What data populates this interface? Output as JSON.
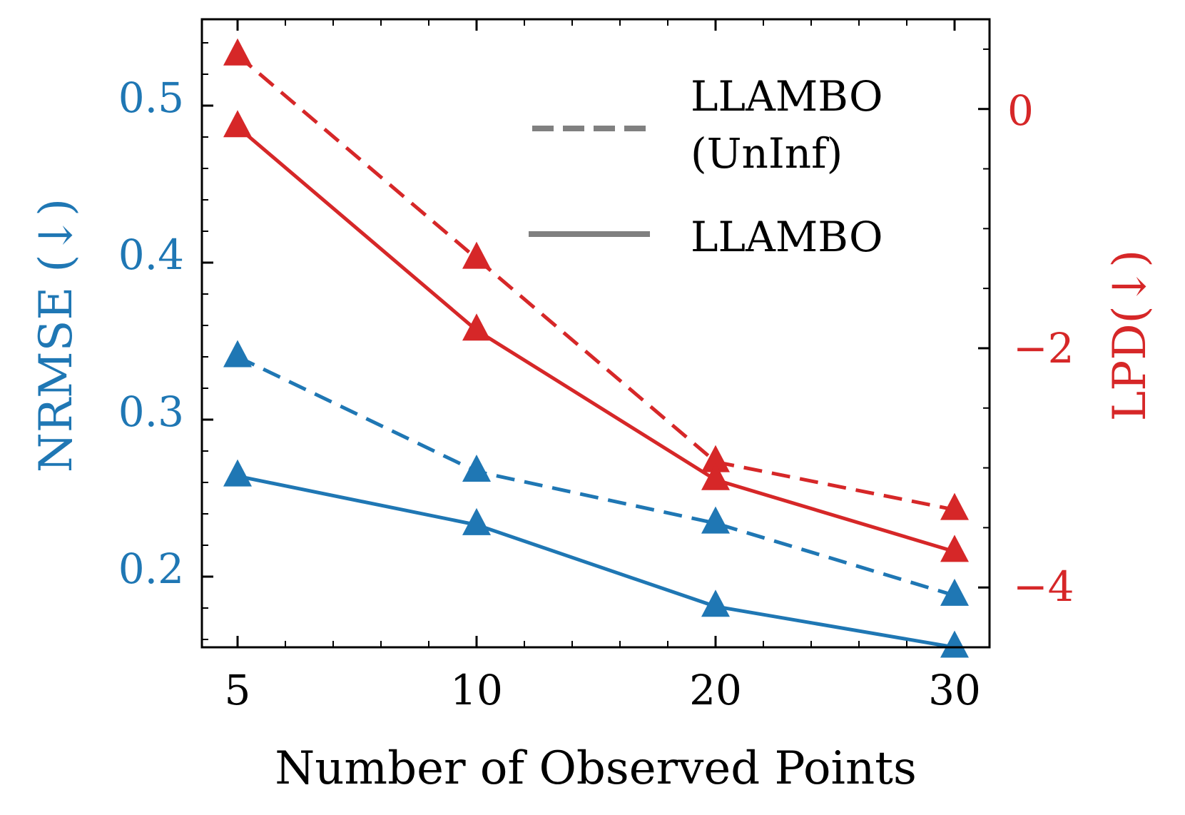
{
  "chart_data": {
    "type": "line",
    "title": "",
    "xlabel": "Number of Observed Points",
    "x": [
      5,
      10,
      20,
      30
    ],
    "x_tick_labels": [
      "5",
      "10",
      "20",
      "30"
    ],
    "left_axis": {
      "label": "NRMSE (↓)",
      "ylim": [
        0.155,
        0.555
      ],
      "ticks": [
        0.2,
        0.3,
        0.4,
        0.5
      ],
      "tick_labels": [
        "0.2",
        "0.3",
        "0.4",
        "0.5"
      ],
      "color": "#1f77b4"
    },
    "right_axis": {
      "label": "LPD(↓)",
      "ylim": [
        -4.5,
        0.75
      ],
      "ticks": [
        -4,
        -2,
        0
      ],
      "tick_labels": [
        "−4",
        "−2",
        "0"
      ],
      "color": "#d62728"
    },
    "series": [
      {
        "name": "LLAMBO (UnInf) NRMSE",
        "axis": "left",
        "style": "dashed",
        "marker": "triangle",
        "color": "#1f77b4",
        "values": [
          0.34,
          0.267,
          0.234,
          0.188
        ]
      },
      {
        "name": "LLAMBO NRMSE",
        "axis": "left",
        "style": "solid",
        "marker": "triangle",
        "color": "#1f77b4",
        "values": [
          0.264,
          0.233,
          0.181,
          0.155
        ]
      },
      {
        "name": "LLAMBO (UnInf) LPD",
        "axis": "right",
        "style": "dashed",
        "marker": "triangle",
        "color": "#d62728",
        "values": [
          0.45,
          -1.25,
          -2.95,
          -3.35
        ]
      },
      {
        "name": "LLAMBO LPD",
        "axis": "right",
        "style": "solid",
        "marker": "triangle",
        "color": "#d62728",
        "values": [
          -0.15,
          -1.85,
          -3.1,
          -3.7
        ]
      }
    ],
    "legend": {
      "position": "top-right",
      "entries": [
        {
          "line1": "LLAMBO",
          "line2": "(UnInf)",
          "style": "dashed",
          "color": "#808080"
        },
        {
          "line1": "LLAMBO",
          "line2": "",
          "style": "solid",
          "color": "#808080"
        }
      ]
    }
  }
}
